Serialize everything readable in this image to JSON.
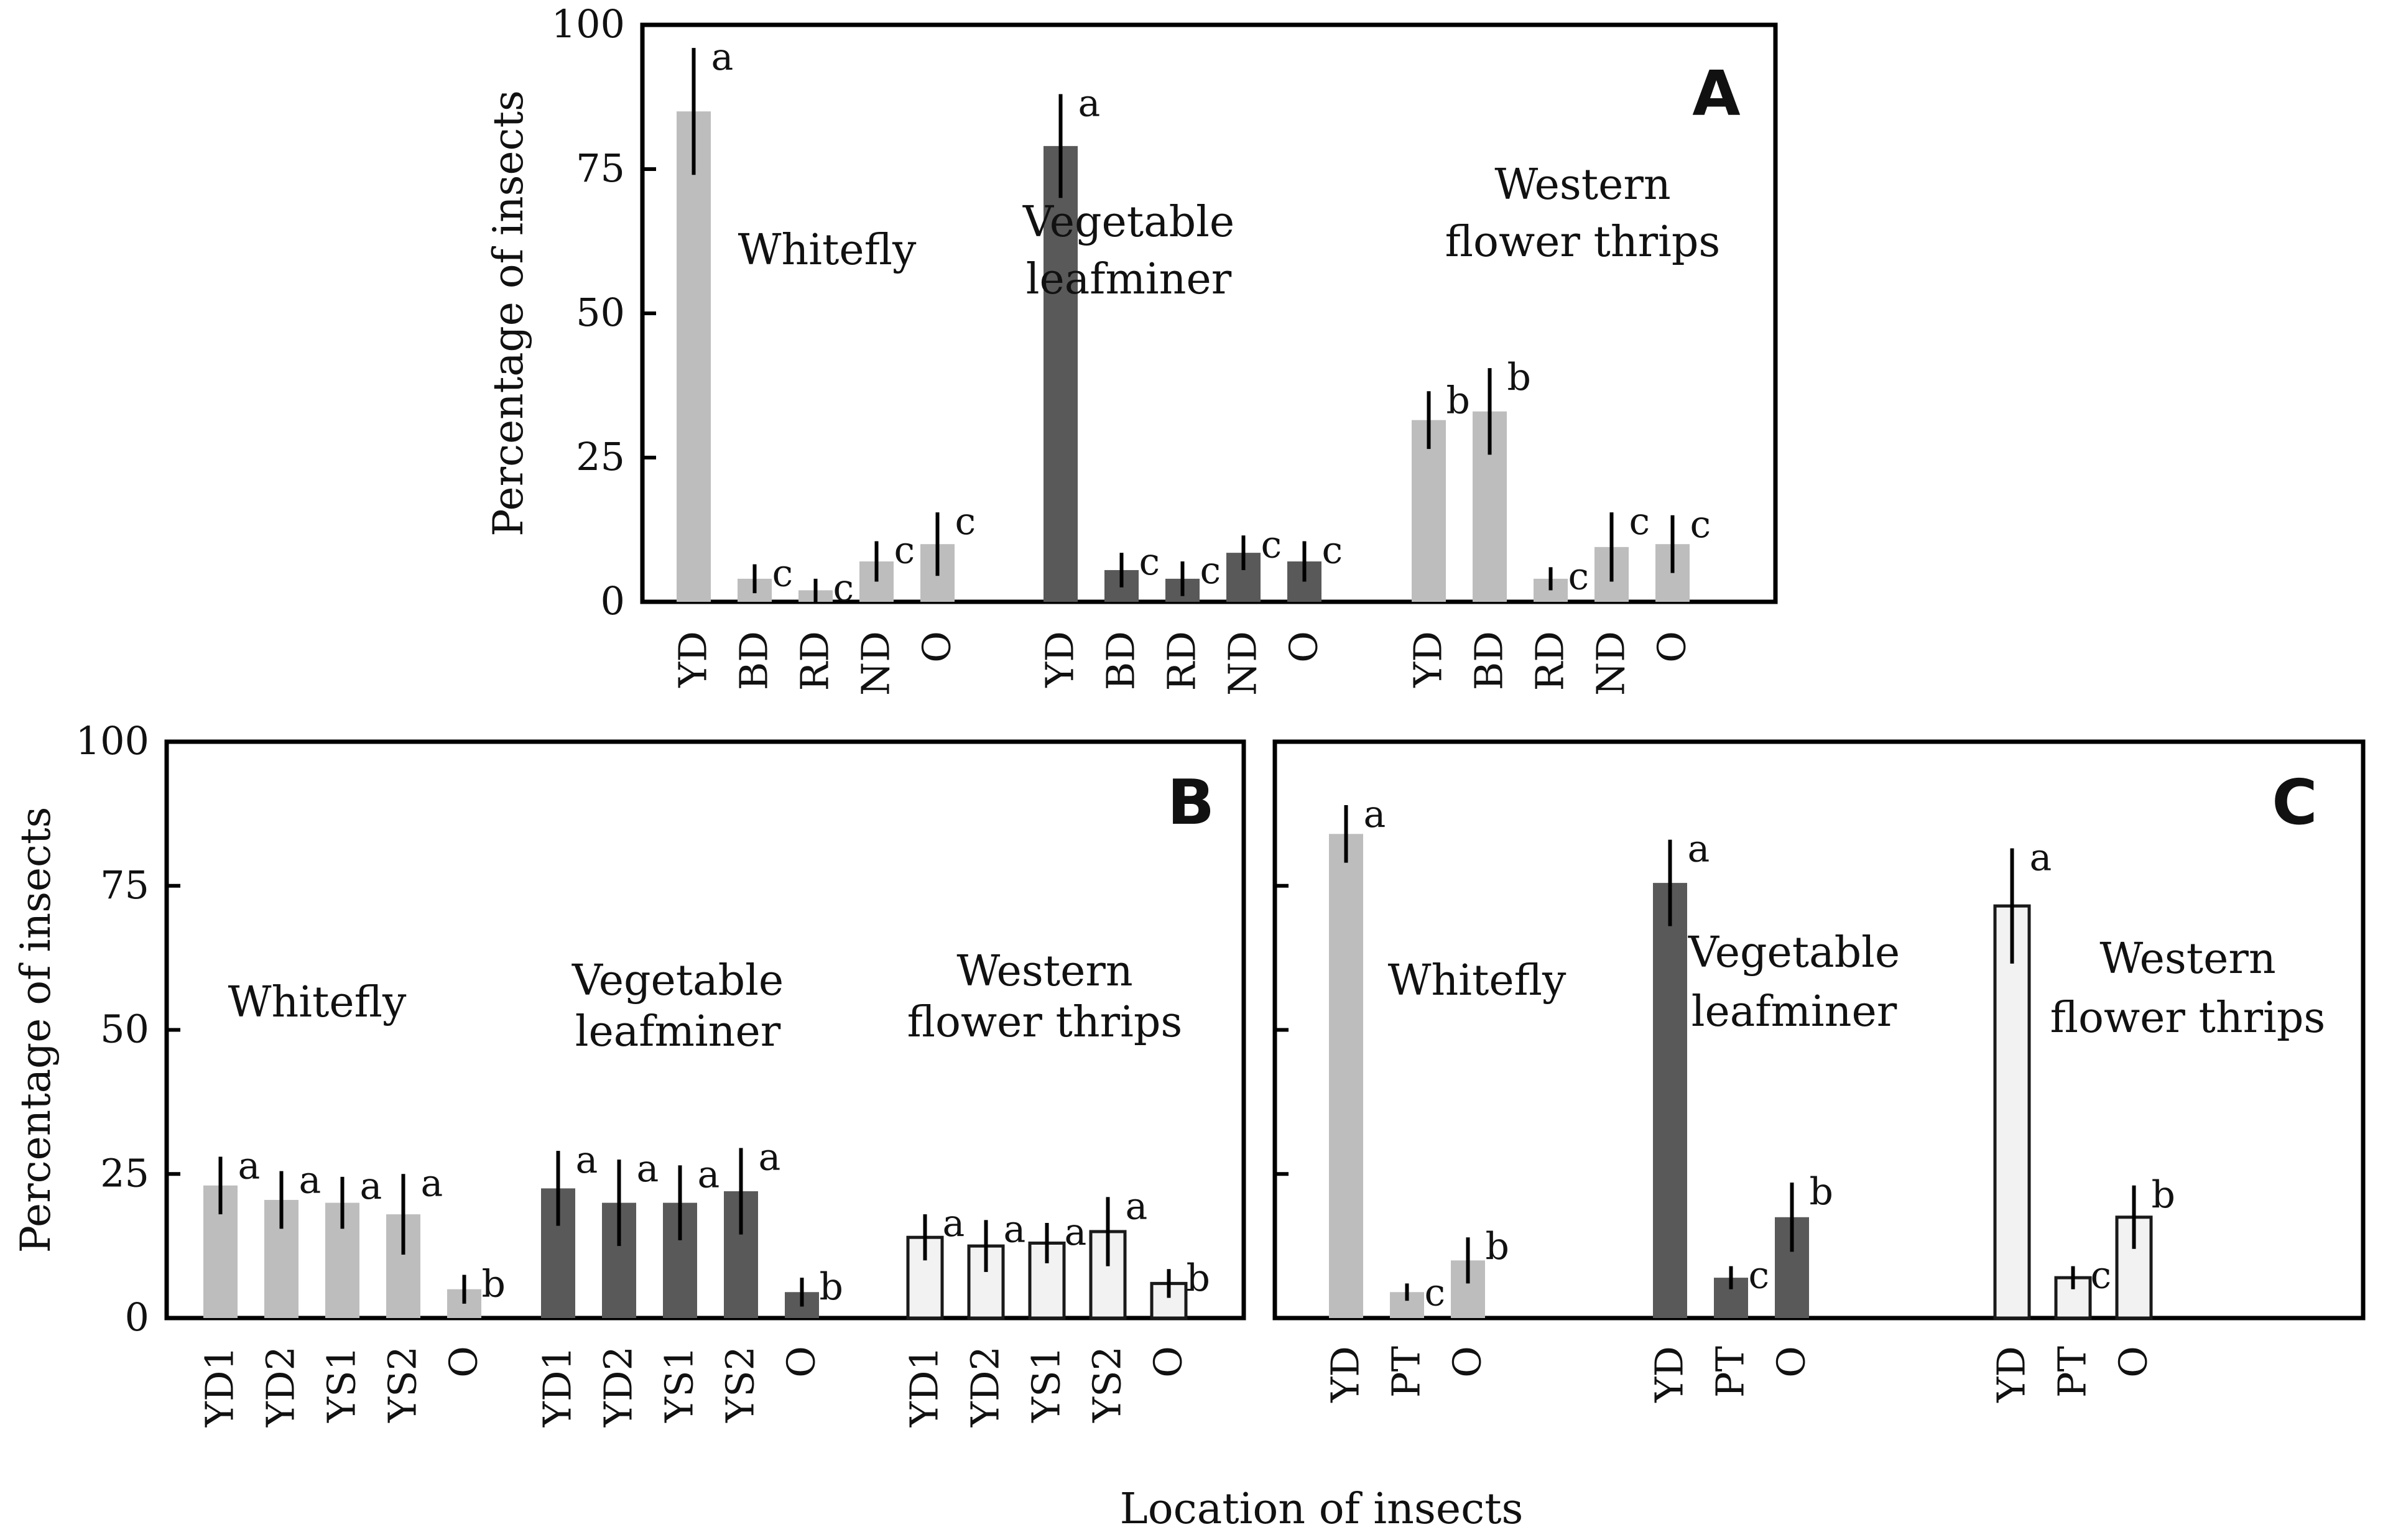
{
  "figure": {
    "xlabel": "Location of insects"
  },
  "colors": {
    "whitefly": "#bdbdbd",
    "leafminer": "#595959",
    "thrips_fill": "#f2f2f2",
    "thrips_stroke": "#1a1a1a",
    "error_bar": "#000000"
  },
  "chart_data": [
    {
      "panel": "A",
      "type": "bar",
      "ylabel": "Percentage of insects",
      "ylim": [
        0,
        100
      ],
      "yticks": [
        "0",
        "25",
        "50",
        "75",
        "100"
      ],
      "groups": [
        {
          "label_lines": [
            "Whitefly"
          ],
          "style": "whitefly",
          "categories": [
            "YD",
            "BD",
            "RD",
            "ND",
            "O"
          ],
          "values": [
            85,
            4,
            2,
            7,
            10
          ],
          "errors": [
            11,
            2.5,
            2,
            3.5,
            5.5
          ],
          "letters": [
            "a",
            "c",
            "c",
            "c",
            "c"
          ]
        },
        {
          "label_lines": [
            "Vegetable",
            "leafminer"
          ],
          "style": "leafminer",
          "categories": [
            "YD",
            "BD",
            "RD",
            "ND",
            "O"
          ],
          "values": [
            79,
            5.5,
            4,
            8.5,
            7
          ],
          "errors": [
            9,
            3,
            3,
            3,
            3.5
          ],
          "letters": [
            "a",
            "c",
            "c",
            "c",
            "c"
          ]
        },
        {
          "label_lines": [
            "Western",
            "flower thrips"
          ],
          "style": "whitefly",
          "categories": [
            "YD",
            "BD",
            "RD",
            "ND",
            "O"
          ],
          "values": [
            31.5,
            33,
            4,
            9.5,
            10
          ],
          "errors": [
            5,
            7.5,
            2,
            6,
            5
          ],
          "letters": [
            "b",
            "b",
            "c",
            "c",
            "c"
          ]
        }
      ]
    },
    {
      "panel": "B",
      "type": "bar",
      "ylabel": "Percentage of insects",
      "ylim": [
        0,
        100
      ],
      "yticks": [
        "0",
        "25",
        "50",
        "75",
        "100"
      ],
      "groups": [
        {
          "label_lines": [
            "Whitefly"
          ],
          "style": "whitefly",
          "categories": [
            "YD1",
            "YD2",
            "YS1",
            "YS2",
            "O"
          ],
          "values": [
            23,
            20.5,
            20,
            18,
            5
          ],
          "errors": [
            5,
            5,
            4.5,
            7,
            2.5
          ],
          "letters": [
            "a",
            "a",
            "a",
            "a",
            "b"
          ]
        },
        {
          "label_lines": [
            "Vegetable",
            "leafminer"
          ],
          "style": "leafminer",
          "categories": [
            "YD1",
            "YD2",
            "YS1",
            "YS2",
            "O"
          ],
          "values": [
            22.5,
            20,
            20,
            22,
            4.5
          ],
          "errors": [
            6.5,
            7.5,
            6.5,
            7.5,
            2.5
          ],
          "letters": [
            "a",
            "a",
            "a",
            "a",
            "b"
          ]
        },
        {
          "label_lines": [
            "Western",
            "flower thrips"
          ],
          "style": "thrips",
          "categories": [
            "YD1",
            "YD2",
            "YS1",
            "YS2",
            "O"
          ],
          "values": [
            14,
            12.5,
            13,
            15,
            6
          ],
          "errors": [
            4,
            4.5,
            3.5,
            6,
            2.5
          ],
          "letters": [
            "a",
            "a",
            "a",
            "a",
            "b"
          ]
        }
      ]
    },
    {
      "panel": "C",
      "type": "bar",
      "ylabel": "",
      "ylim": [
        0,
        100
      ],
      "yticks": [],
      "groups": [
        {
          "label_lines": [
            "Whitefly"
          ],
          "style": "whitefly",
          "categories": [
            "YD",
            "PT",
            "O"
          ],
          "values": [
            84,
            4.5,
            10
          ],
          "errors": [
            5,
            1.5,
            4
          ],
          "letters": [
            "a",
            "c",
            "b"
          ]
        },
        {
          "label_lines": [
            "Vegetable",
            "leafminer"
          ],
          "style": "leafminer",
          "categories": [
            "YD",
            "PT",
            "O"
          ],
          "values": [
            75.5,
            7,
            17.5
          ],
          "errors": [
            7.5,
            2,
            6
          ],
          "letters": [
            "a",
            "c",
            "b"
          ]
        },
        {
          "label_lines": [
            "Western",
            "flower thrips"
          ],
          "style": "thrips",
          "categories": [
            "YD",
            "PT",
            "O"
          ],
          "values": [
            71.5,
            7,
            17.5
          ],
          "errors": [
            10,
            2,
            5.5
          ],
          "letters": [
            "a",
            "c",
            "b"
          ]
        }
      ]
    }
  ]
}
